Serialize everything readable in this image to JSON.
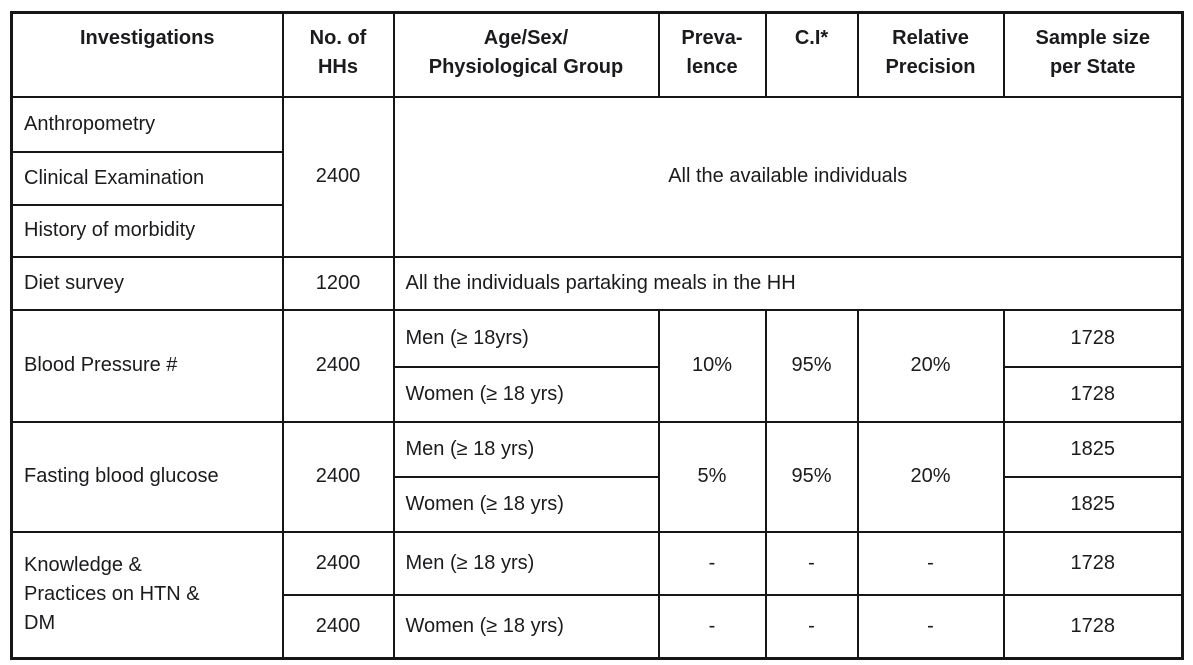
{
  "table": {
    "headers": {
      "investigations": "Investigations",
      "no_of_hhs": "No. of\nHHs",
      "age_sex_group": "Age/Sex/\nPhysiological Group",
      "prevalence": "Preva-\nlence",
      "ci": "C.I*",
      "relative_precision": "Relative\nPrecision",
      "sample_size": "Sample size\nper State"
    },
    "rows": {
      "anthropometry": {
        "label": "Anthropometry"
      },
      "clinical": {
        "label": "Clinical Examination"
      },
      "history": {
        "label": "History of morbidity"
      },
      "anthro_group": {
        "hhs": "2400",
        "group": "All the available individuals"
      },
      "diet": {
        "label": "Diet survey",
        "hhs": "1200",
        "group": "All the individuals partaking meals in the HH"
      },
      "blood_pressure": {
        "label": "Blood Pressure #",
        "hhs": "2400",
        "men": "Men (≥ 18yrs)",
        "women": "Women (≥ 18 yrs)",
        "prevalence": "10%",
        "ci": "95%",
        "relative_precision": "20%",
        "sample_men": "1728",
        "sample_women": "1728"
      },
      "fasting_glucose": {
        "label": "Fasting blood glucose",
        "hhs": "2400",
        "men": "Men (≥ 18 yrs)",
        "women": "Women (≥ 18 yrs)",
        "prevalence": "5%",
        "ci": "95%",
        "relative_precision": "20%",
        "sample_men": "1825",
        "sample_women": "1825"
      },
      "knowledge": {
        "label": "Knowledge &\nPractices on HTN &\nDM",
        "hhs_men": "2400",
        "hhs_women": "2400",
        "men": "Men (≥ 18 yrs)",
        "women": "Women (≥ 18 yrs)",
        "prevalence_men": "-",
        "ci_men": "-",
        "rp_men": "-",
        "prevalence_women": "-",
        "ci_women": "-",
        "rp_women": "-",
        "sample_men": "1728",
        "sample_women": "1728"
      }
    },
    "colors": {
      "border": "#161617",
      "text": "#1b1b1e",
      "background": "#ffffff"
    }
  }
}
